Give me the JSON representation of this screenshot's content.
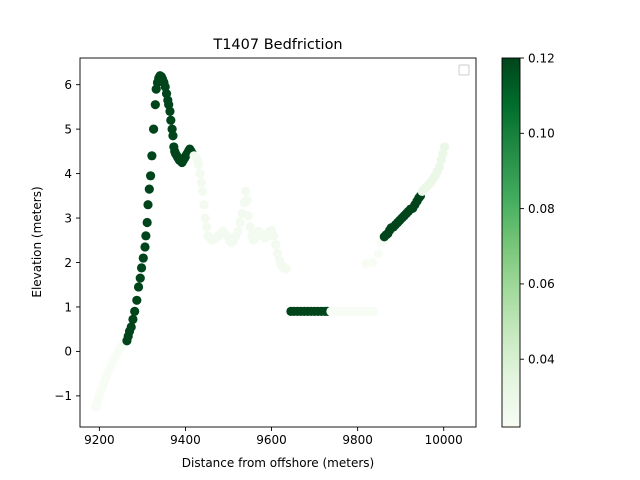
{
  "chart_data": {
    "type": "scatter",
    "title": "T1407 Bedfriction",
    "xlabel": "Distance from offshore (meters)",
    "ylabel": "Elevation (meters)",
    "xlim": [
      9155,
      10075
    ],
    "ylim": [
      -1.7,
      6.6
    ],
    "xticks": [
      9200,
      9400,
      9600,
      9800,
      10000
    ],
    "yticks": [
      -1,
      0,
      1,
      2,
      3,
      4,
      5,
      6
    ],
    "xtick_labels": [
      "9200",
      "9400",
      "9600",
      "9800",
      "10000"
    ],
    "ytick_labels": [
      "−1",
      "0",
      "1",
      "2",
      "3",
      "4",
      "5",
      "6"
    ],
    "grid": false,
    "legend": "top-right (empty)",
    "colorbar": {
      "colormap": "Greens",
      "vmin": 0.022,
      "vmax": 0.12,
      "ticks": [
        0.04,
        0.06,
        0.08,
        0.1,
        0.12
      ],
      "tick_labels": [
        "0.04",
        "0.06",
        "0.08",
        "0.10",
        "0.12"
      ],
      "low_color": "#f1faee",
      "high_color": "#00441b"
    },
    "segments": [
      {
        "c": 0.022,
        "points": [
          [
            9192,
            -1.25
          ],
          [
            9195,
            -1.15
          ],
          [
            9198,
            -1.05
          ],
          [
            9201,
            -0.95
          ],
          [
            9205,
            -0.85
          ],
          [
            9210,
            -0.72
          ],
          [
            9215,
            -0.6
          ],
          [
            9220,
            -0.48
          ],
          [
            9226,
            -0.35
          ],
          [
            9232,
            -0.22
          ],
          [
            9238,
            -0.1
          ],
          [
            9244,
            0.02
          ],
          [
            9250,
            0.1
          ],
          [
            9256,
            0.18
          ],
          [
            9262,
            0.22
          ]
        ]
      },
      {
        "c": 0.12,
        "points": [
          [
            9264,
            0.24
          ],
          [
            9267,
            0.34
          ],
          [
            9270,
            0.45
          ],
          [
            9274,
            0.55
          ],
          [
            9278,
            0.72
          ],
          [
            9282,
            0.9
          ],
          [
            9287,
            1.15
          ],
          [
            9291,
            1.45
          ],
          [
            9295,
            1.65
          ],
          [
            9298,
            1.88
          ],
          [
            9302,
            2.1
          ],
          [
            9306,
            2.35
          ],
          [
            9308,
            2.6
          ],
          [
            9311,
            2.9
          ],
          [
            9313,
            3.3
          ],
          [
            9316,
            3.65
          ],
          [
            9319,
            3.95
          ],
          [
            9322,
            4.4
          ],
          [
            9326,
            5.0
          ],
          [
            9330,
            5.55
          ],
          [
            9332,
            5.9
          ],
          [
            9335,
            6.05
          ],
          [
            9338,
            6.15
          ],
          [
            9341,
            6.2
          ],
          [
            9344,
            6.18
          ],
          [
            9347,
            6.12
          ],
          [
            9350,
            6.05
          ],
          [
            9353,
            5.95
          ],
          [
            9356,
            5.8
          ],
          [
            9359,
            5.65
          ],
          [
            9361,
            5.55
          ],
          [
            9364,
            5.4
          ],
          [
            9366,
            5.2
          ],
          [
            9369,
            5.0
          ],
          [
            9371,
            4.85
          ],
          [
            9373,
            4.6
          ],
          [
            9375,
            4.5
          ],
          [
            9377,
            4.45
          ],
          [
            9380,
            4.4
          ],
          [
            9383,
            4.35
          ],
          [
            9386,
            4.3
          ],
          [
            9389,
            4.32
          ],
          [
            9392,
            4.25
          ],
          [
            9395,
            4.3
          ],
          [
            9398,
            4.35
          ],
          [
            9401,
            4.4
          ],
          [
            9404,
            4.45
          ],
          [
            9407,
            4.5
          ],
          [
            9410,
            4.55
          ],
          [
            9413,
            4.5
          ],
          [
            9416,
            4.45
          ]
        ]
      },
      {
        "c": 0.025,
        "points": [
          [
            9420,
            4.4
          ],
          [
            9425,
            4.35
          ],
          [
            9428,
            4.3
          ],
          [
            9431,
            4.2
          ],
          [
            9434,
            4.0
          ],
          [
            9437,
            3.8
          ],
          [
            9440,
            3.6
          ],
          [
            9443,
            3.3
          ],
          [
            9446,
            3.0
          ],
          [
            9449,
            2.8
          ],
          [
            9452,
            2.6
          ],
          [
            9457,
            2.55
          ],
          [
            9462,
            2.5
          ],
          [
            9467,
            2.52
          ],
          [
            9472,
            2.55
          ],
          [
            9477,
            2.6
          ],
          [
            9482,
            2.65
          ],
          [
            9487,
            2.7
          ],
          [
            9492,
            2.65
          ],
          [
            9497,
            2.6
          ],
          [
            9502,
            2.5
          ],
          [
            9507,
            2.45
          ],
          [
            9512,
            2.5
          ],
          [
            9517,
            2.6
          ],
          [
            9522,
            2.7
          ],
          [
            9527,
            2.9
          ],
          [
            9532,
            3.1
          ],
          [
            9537,
            3.35
          ],
          [
            9540,
            3.6
          ],
          [
            9543,
            3.4
          ],
          [
            9546,
            3.05
          ],
          [
            9550,
            2.8
          ],
          [
            9554,
            2.6
          ],
          [
            9558,
            2.5
          ],
          [
            9562,
            2.55
          ],
          [
            9566,
            2.65
          ],
          [
            9570,
            2.7
          ],
          [
            9575,
            2.65
          ],
          [
            9580,
            2.6
          ],
          [
            9585,
            2.55
          ],
          [
            9590,
            2.6
          ],
          [
            9595,
            2.7
          ],
          [
            9600,
            2.72
          ],
          [
            9605,
            2.6
          ],
          [
            9610,
            2.4
          ],
          [
            9614,
            2.2
          ],
          [
            9618,
            2.05
          ],
          [
            9622,
            1.95
          ],
          [
            9626,
            1.9
          ],
          [
            9630,
            1.88
          ],
          [
            9634,
            1.85
          ]
        ]
      },
      {
        "c": 0.12,
        "points": [
          [
            9645,
            0.9
          ],
          [
            9652,
            0.9
          ],
          [
            9660,
            0.9
          ],
          [
            9668,
            0.9
          ],
          [
            9676,
            0.9
          ],
          [
            9684,
            0.9
          ],
          [
            9692,
            0.9
          ],
          [
            9700,
            0.9
          ],
          [
            9708,
            0.9
          ],
          [
            9716,
            0.9
          ],
          [
            9724,
            0.9
          ],
          [
            9730,
            0.9
          ]
        ]
      },
      {
        "c": 0.022,
        "points": [
          [
            9738,
            0.9
          ],
          [
            9748,
            0.9
          ],
          [
            9758,
            0.9
          ],
          [
            9768,
            0.9
          ],
          [
            9778,
            0.9
          ],
          [
            9788,
            0.9
          ],
          [
            9798,
            0.9
          ],
          [
            9808,
            0.9
          ],
          [
            9818,
            0.9
          ],
          [
            9828,
            0.9
          ],
          [
            9838,
            0.9
          ],
          [
            9820,
            1.98
          ],
          [
            9835,
            2.0
          ],
          [
            9848,
            2.2
          ],
          [
            9854,
            2.45
          ],
          [
            9858,
            2.55
          ]
        ]
      },
      {
        "c": 0.12,
        "points": [
          [
            9862,
            2.58
          ],
          [
            9866,
            2.62
          ],
          [
            9870,
            2.65
          ],
          [
            9874,
            2.72
          ],
          [
            9878,
            2.78
          ],
          [
            9883,
            2.8
          ],
          [
            9888,
            2.85
          ],
          [
            9893,
            2.9
          ],
          [
            9898,
            2.95
          ],
          [
            9903,
            3.0
          ],
          [
            9908,
            3.05
          ],
          [
            9913,
            3.1
          ],
          [
            9918,
            3.15
          ],
          [
            9923,
            3.2
          ],
          [
            9928,
            3.22
          ],
          [
            9933,
            3.3
          ],
          [
            9938,
            3.38
          ],
          [
            9942,
            3.45
          ],
          [
            9946,
            3.5
          ]
        ]
      },
      {
        "c": 0.03,
        "points": [
          [
            9950,
            3.6
          ],
          [
            9955,
            3.65
          ],
          [
            9960,
            3.7
          ],
          [
            9965,
            3.75
          ],
          [
            9970,
            3.8
          ],
          [
            9975,
            3.88
          ],
          [
            9980,
            3.95
          ],
          [
            9985,
            4.05
          ],
          [
            9990,
            4.15
          ],
          [
            9994,
            4.3
          ],
          [
            9998,
            4.45
          ],
          [
            10002,
            4.6
          ]
        ]
      }
    ]
  }
}
